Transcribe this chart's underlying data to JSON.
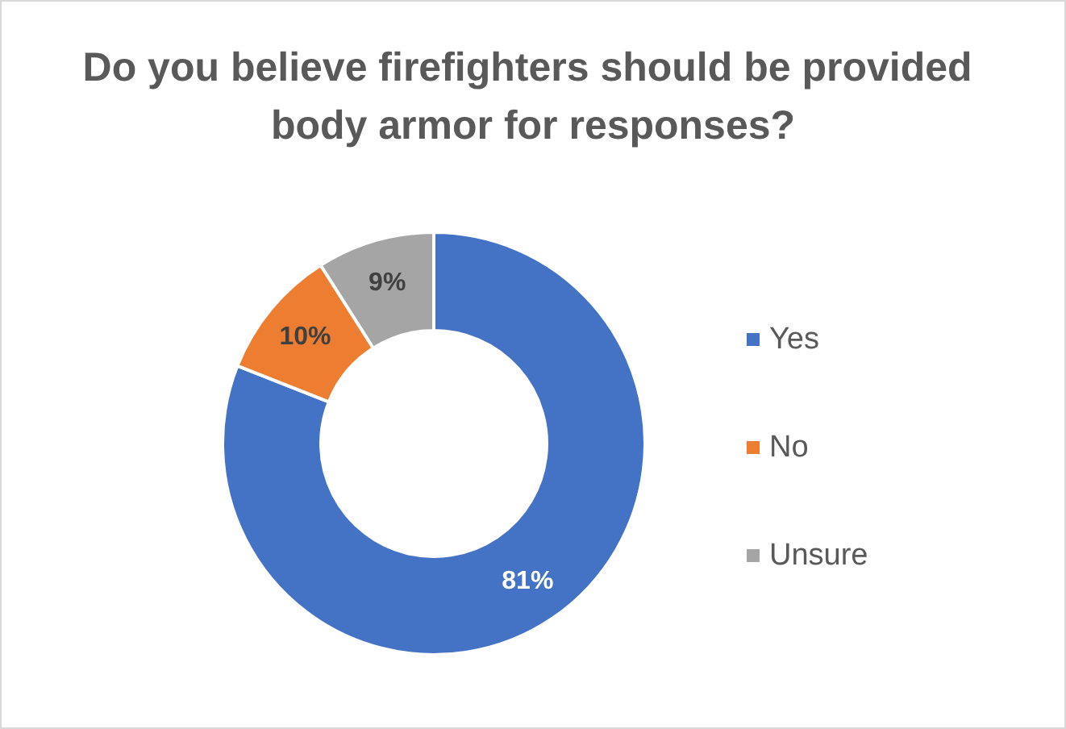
{
  "chart_data": {
    "type": "donut",
    "title": "Do you believe firefighters should be provided body armor for responses?",
    "categories": [
      "Yes",
      "No",
      "Unsure"
    ],
    "values": [
      81,
      10,
      9
    ],
    "colors": [
      "#4472c4",
      "#ed7d31",
      "#a5a5a5"
    ],
    "value_labels": [
      "81%",
      "10%",
      "9%"
    ],
    "legend": "right"
  }
}
